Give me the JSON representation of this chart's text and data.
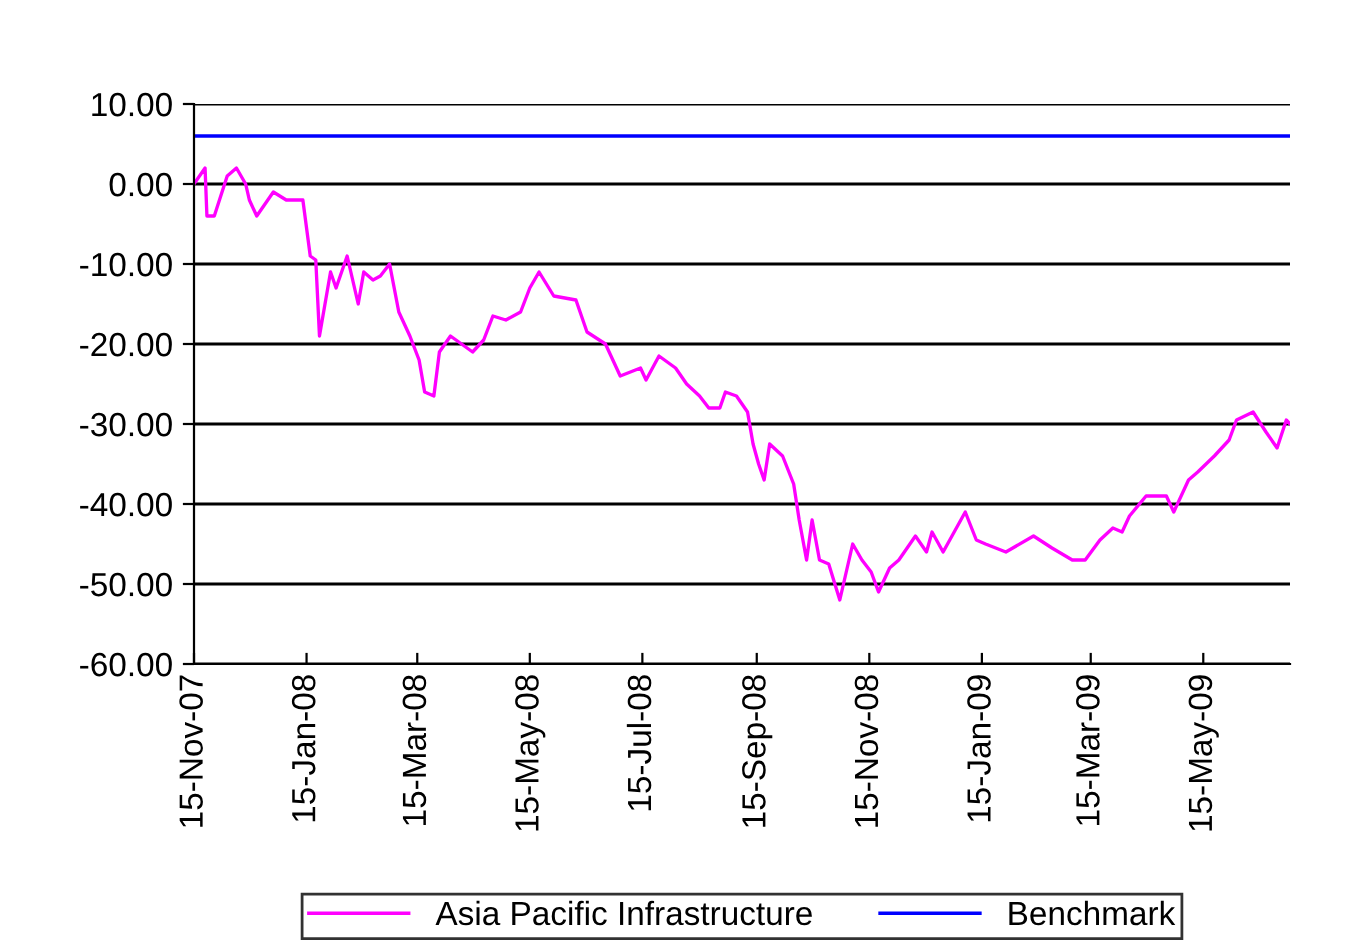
{
  "chart_data": {
    "type": "line",
    "series": [
      {
        "name": "Asia Pacific Infrastructure",
        "color": "#ff00ff",
        "x": [
          "2007-11-15",
          "2007-11-21",
          "2007-11-22",
          "2007-11-26",
          "2007-12-03",
          "2007-12-08",
          "2007-12-13",
          "2007-12-15",
          "2007-12-19",
          "2007-12-28",
          "2008-01-04",
          "2008-01-10",
          "2008-01-13",
          "2008-01-17",
          "2008-01-20",
          "2008-01-22",
          "2008-01-28",
          "2008-01-31",
          "2008-02-06",
          "2008-02-12",
          "2008-02-15",
          "2008-02-20",
          "2008-02-24",
          "2008-02-29",
          "2008-03-05",
          "2008-03-11",
          "2008-03-16",
          "2008-03-19",
          "2008-03-24",
          "2008-03-27",
          "2008-04-02",
          "2008-04-14",
          "2008-04-20",
          "2008-04-25",
          "2008-05-02",
          "2008-05-10",
          "2008-05-15",
          "2008-05-20",
          "2008-05-28",
          "2008-06-09",
          "2008-06-15",
          "2008-06-25",
          "2008-07-03",
          "2008-07-14",
          "2008-07-17",
          "2008-07-24",
          "2008-08-02",
          "2008-08-08",
          "2008-08-15",
          "2008-08-20",
          "2008-08-26",
          "2008-08-29",
          "2008-09-04",
          "2008-09-10",
          "2008-09-13",
          "2008-09-16",
          "2008-09-19",
          "2008-09-22",
          "2008-09-29",
          "2008-10-05",
          "2008-10-08",
          "2008-10-12",
          "2008-10-15",
          "2008-10-19",
          "2008-10-24",
          "2008-10-30",
          "2008-11-02",
          "2008-11-06",
          "2008-11-11",
          "2008-11-16",
          "2008-11-20",
          "2008-11-26",
          "2008-12-01",
          "2008-12-10",
          "2008-12-16",
          "2008-12-19",
          "2008-12-25",
          "2009-01-06",
          "2009-01-12",
          "2009-01-17",
          "2009-01-28",
          "2009-02-12",
          "2009-02-22",
          "2009-03-05",
          "2009-03-12",
          "2009-03-20",
          "2009-03-27",
          "2009-04-01",
          "2009-04-05",
          "2009-04-14",
          "2009-04-25",
          "2009-04-29",
          "2009-05-07",
          "2009-05-12",
          "2009-05-21",
          "2009-05-29",
          "2009-06-02",
          "2009-06-11",
          "2009-06-18",
          "2009-06-24",
          "2009-06-29",
          "2009-07-01"
        ],
        "values": [
          0,
          2,
          -4,
          -4,
          1,
          2,
          0,
          -2,
          -4,
          -1,
          -2,
          -2,
          -2,
          -9,
          -9.5,
          -19,
          -11,
          -13,
          -9,
          -15,
          -11,
          -12,
          -11.5,
          -10,
          -16,
          -19,
          -22,
          -26,
          -26.5,
          -21,
          -19,
          -21,
          -19.5,
          -16.5,
          -17,
          -16,
          -13,
          -11,
          -14,
          -14.5,
          -18.5,
          -20,
          -24,
          -23,
          -24.5,
          -21.5,
          -23,
          -25,
          -26.5,
          -28,
          -28,
          -26,
          -26.5,
          -28.5,
          -32.5,
          -35,
          -37,
          -32.5,
          -34,
          -37.5,
          -42,
          -47,
          -42,
          -47,
          -47.5,
          -52,
          -49,
          -45,
          -47,
          -48.5,
          -51,
          -48,
          -47,
          -44,
          -46,
          -43.5,
          -46,
          -41,
          -44.5,
          -45,
          -46,
          -44,
          -45.5,
          -47,
          -47,
          -44.5,
          -43,
          -43.5,
          -41.5,
          -39,
          -39,
          -41,
          -37,
          -36,
          -34,
          -32,
          -29.5,
          -28.5,
          -31,
          -33,
          -29.5,
          -30
        ]
      },
      {
        "name": "Benchmark",
        "color": "#0000ff",
        "x": [
          "2007-11-15",
          "2009-07-01"
        ],
        "values": [
          6,
          6
        ]
      }
    ],
    "xlim": [
      "2007-11-15",
      "2009-07-01"
    ],
    "xticks": [
      {
        "value": "2007-11-15",
        "label": "15-Nov-07"
      },
      {
        "value": "2008-01-15",
        "label": "15-Jan-08"
      },
      {
        "value": "2008-03-15",
        "label": "15-Mar-08"
      },
      {
        "value": "2008-05-15",
        "label": "15-May-08"
      },
      {
        "value": "2008-07-15",
        "label": "15-Jul-08"
      },
      {
        "value": "2008-09-15",
        "label": "15-Sep-08"
      },
      {
        "value": "2008-11-15",
        "label": "15-Nov-08"
      },
      {
        "value": "2009-01-15",
        "label": "15-Jan-09"
      },
      {
        "value": "2009-03-15",
        "label": "15-Mar-09"
      },
      {
        "value": "2009-05-15",
        "label": "15-May-09"
      }
    ],
    "ylim": [
      -60,
      10
    ],
    "yticks": [
      {
        "value": 10,
        "label": "10.00"
      },
      {
        "value": 0,
        "label": "0.00"
      },
      {
        "value": -10,
        "label": "-10.00"
      },
      {
        "value": -20,
        "label": "-20.00"
      },
      {
        "value": -30,
        "label": "-30.00"
      },
      {
        "value": -40,
        "label": "-40.00"
      },
      {
        "value": -50,
        "label": "-50.00"
      },
      {
        "value": -60,
        "label": "-60.00"
      }
    ],
    "grid": "y",
    "legend": "bottom",
    "marker": "none",
    "line_style": "solid"
  }
}
